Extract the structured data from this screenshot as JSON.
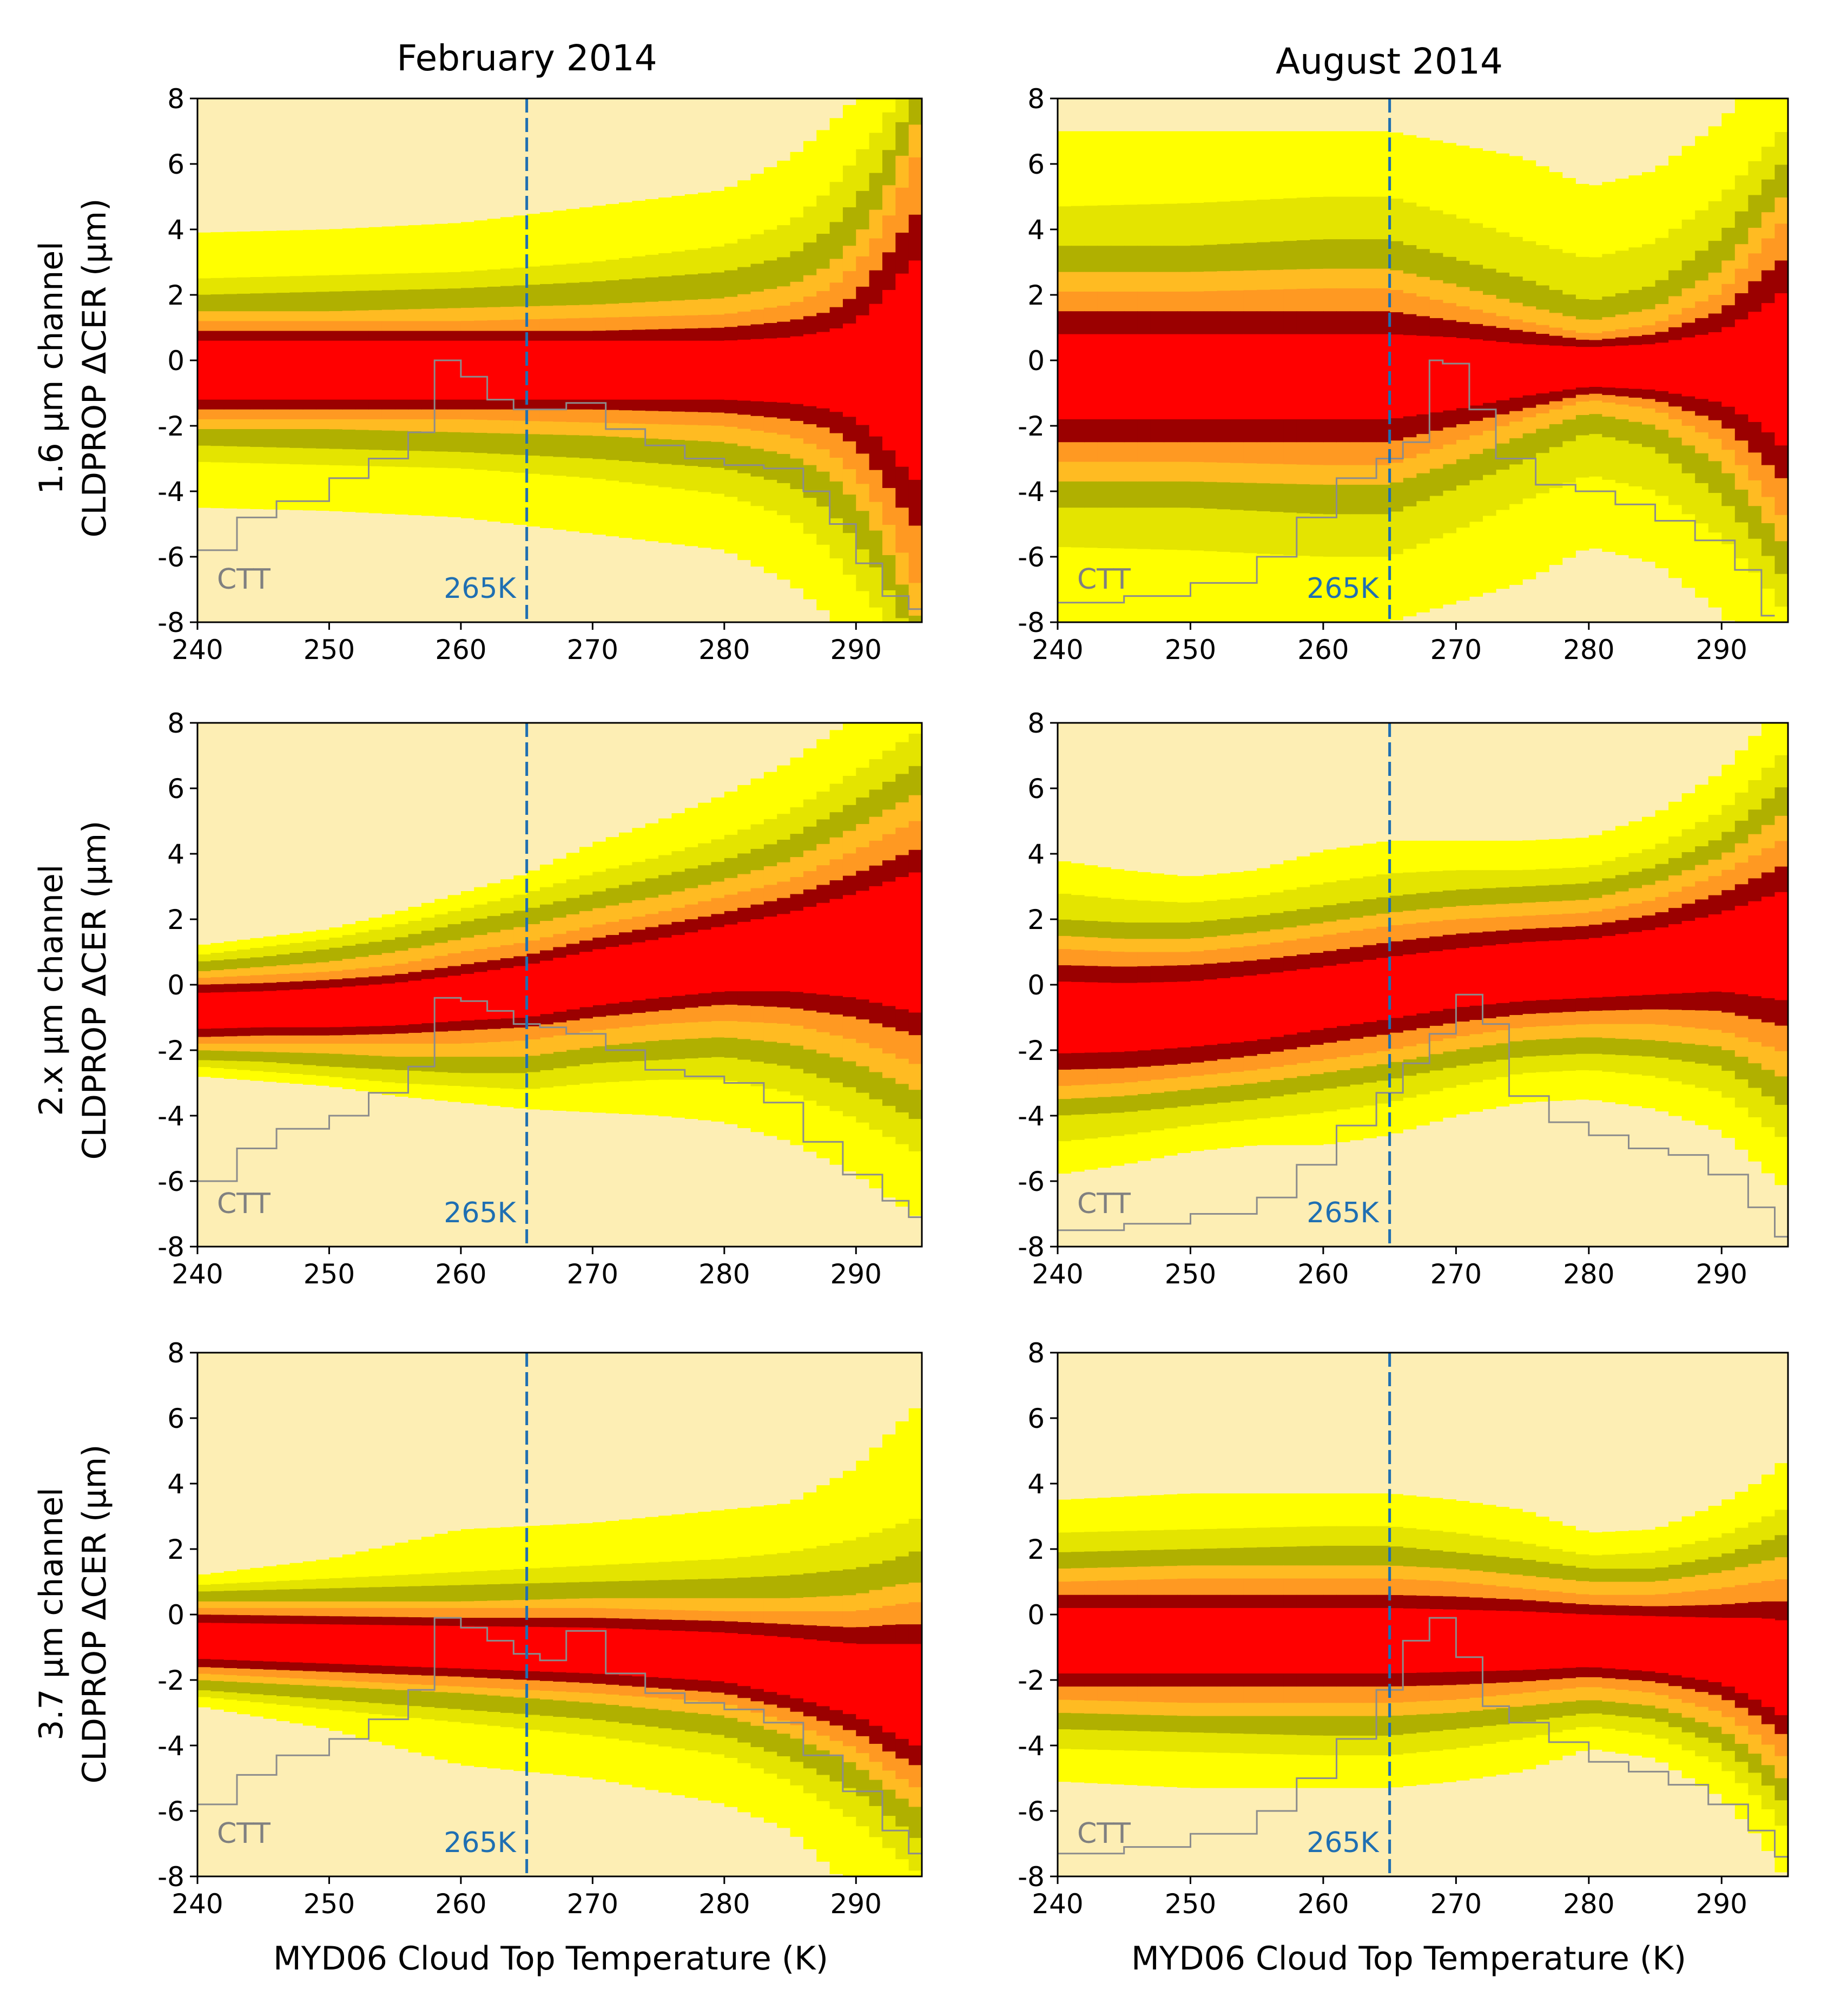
{
  "figure": {
    "col_titles": [
      "February 2014",
      "August 2014"
    ],
    "row_labels": [
      [
        "1.6 µm channel",
        "CLDPROP ΔCER (µm)"
      ],
      [
        "2.x µm channel",
        "CLDPROP ΔCER (µm)"
      ],
      [
        "3.7 µm channel",
        "CLDPROP ΔCER (µm)"
      ]
    ],
    "xlabel": "MYD06 Cloud Top Temperature (K)",
    "ctt_label": "CTT",
    "marker_label": "265K",
    "colors": {
      "band_levels": [
        "#fdeeb4",
        "#ffff00",
        "#e4e400",
        "#b0b000",
        "#ffbb22",
        "#ff9922",
        "#9b0000",
        "#ff0000"
      ],
      "ctt_line": "#8c8c8c",
      "marker_line": "#1f6fb2"
    }
  },
  "chart_data": [
    {
      "type": "heatmap",
      "panel": "February 2014 / 1.6 µm",
      "month": "February 2014",
      "channel": "1.6 µm channel",
      "xlim": [
        240,
        295
      ],
      "ylim": [
        -8,
        8
      ],
      "xticks": [
        240,
        250,
        260,
        270,
        280,
        290
      ],
      "yticks": [
        8,
        6,
        4,
        2,
        0,
        -2,
        -4,
        -6,
        -8
      ],
      "ylabel": "CLDPROP ΔCER (µm)",
      "xlabel": "MYD06 Cloud Top Temperature (K)",
      "x": [
        240,
        250,
        260,
        270,
        280,
        285,
        288,
        290,
        292,
        294,
        295
      ],
      "center": [
        -0.3,
        -0.3,
        -0.3,
        -0.3,
        -0.3,
        -0.3,
        -0.3,
        -0.3,
        -0.3,
        -0.3,
        -0.3
      ],
      "band_half_widths": [
        [
          4.2,
          4.3,
          4.5,
          5.0,
          5.5,
          6.5,
          7.5,
          8.3,
          9,
          9,
          9
        ],
        [
          2.8,
          2.9,
          3.0,
          3.3,
          3.8,
          4.5,
          5.5,
          6.5,
          7.5,
          9,
          9
        ],
        [
          2.3,
          2.4,
          2.5,
          2.7,
          3.0,
          3.5,
          4.3,
          5.2,
          6.3,
          8,
          9
        ],
        [
          1.8,
          1.8,
          1.9,
          2.0,
          2.2,
          2.6,
          3.2,
          4.0,
          5.2,
          7,
          8
        ],
        [
          1.5,
          1.5,
          1.5,
          1.6,
          1.7,
          2.0,
          2.5,
          3.2,
          4.3,
          6,
          7
        ],
        [
          1.2,
          1.2,
          1.2,
          1.2,
          1.3,
          1.5,
          1.8,
          2.3,
          3.3,
          4.5,
          5
        ],
        [
          0.9,
          0.9,
          0.9,
          0.9,
          0.9,
          1.0,
          1.2,
          1.5,
          2.2,
          3.2,
          3.5
        ]
      ],
      "ctt_histogram_x": [
        240,
        243,
        246,
        250,
        253,
        256,
        258,
        260,
        262,
        264,
        266,
        268,
        271,
        274,
        277,
        280,
        283,
        286,
        288,
        290,
        292,
        294
      ],
      "ctt_histogram_y": [
        -5.8,
        -4.8,
        -4.3,
        -3.6,
        -3.0,
        -2.2,
        0.0,
        -0.5,
        -1.2,
        -1.5,
        -1.5,
        -1.3,
        -2.1,
        -2.6,
        -3.0,
        -3.2,
        -3.3,
        -4.0,
        -5.0,
        -6.2,
        -7.2,
        -7.6
      ],
      "marker_x": 265
    },
    {
      "type": "heatmap",
      "panel": "August 2014 / 1.6 µm",
      "month": "August 2014",
      "channel": "1.6 µm channel",
      "xlim": [
        240,
        295
      ],
      "ylim": [
        -8,
        8
      ],
      "xticks": [
        240,
        250,
        260,
        270,
        280,
        290
      ],
      "yticks": [
        8,
        6,
        4,
        2,
        0,
        -2,
        -4,
        -6,
        -8
      ],
      "ylabel": "CLDPROP ΔCER (µm)",
      "xlabel": "MYD06 Cloud Top Temperature (K)",
      "x": [
        240,
        250,
        260,
        265,
        270,
        275,
        280,
        285,
        290,
        293,
        295
      ],
      "center": [
        -0.5,
        -0.5,
        -0.5,
        -0.5,
        -0.4,
        -0.3,
        -0.2,
        -0.2,
        -0.2,
        -0.2,
        -0.3
      ],
      "band_half_widths": [
        [
          7.5,
          7.5,
          7.5,
          7.5,
          7.0,
          6.5,
          5.5,
          6.0,
          7.5,
          9,
          9
        ],
        [
          5.2,
          5.3,
          5.5,
          5.5,
          4.8,
          4.0,
          3.3,
          3.8,
          5.2,
          6.5,
          7.5
        ],
        [
          4.0,
          4.0,
          4.2,
          4.2,
          3.5,
          2.8,
          2.0,
          2.5,
          4.0,
          5.5,
          6.5
        ],
        [
          3.2,
          3.2,
          3.3,
          3.3,
          2.7,
          2.0,
          1.4,
          1.8,
          3.0,
          4.5,
          5.5
        ],
        [
          2.6,
          2.6,
          2.7,
          2.7,
          2.1,
          1.5,
          1.0,
          1.3,
          2.3,
          3.7,
          4.7
        ],
        [
          2.0,
          2.0,
          2.0,
          2.0,
          1.6,
          1.2,
          0.8,
          1.0,
          1.7,
          2.8,
          3.5
        ],
        [
          1.3,
          1.3,
          1.3,
          1.3,
          1.1,
          0.8,
          0.6,
          0.7,
          1.1,
          1.8,
          2.5
        ]
      ],
      "ctt_histogram_x": [
        240,
        245,
        250,
        255,
        258,
        261,
        264,
        266,
        268,
        269,
        271,
        273,
        276,
        279,
        282,
        285,
        288,
        291,
        293
      ],
      "ctt_histogram_y": [
        -7.4,
        -7.2,
        -6.8,
        -6.0,
        -4.8,
        -3.6,
        -3.0,
        -2.5,
        0.0,
        -0.1,
        -1.5,
        -3.0,
        -3.8,
        -4.0,
        -4.4,
        -4.9,
        -5.5,
        -6.4,
        -7.8
      ],
      "marker_x": 265
    },
    {
      "type": "heatmap",
      "panel": "February 2014 / 2.x µm",
      "month": "February 2014",
      "channel": "2.x µm channel",
      "xlim": [
        240,
        295
      ],
      "ylim": [
        -8,
        8
      ],
      "xticks": [
        240,
        250,
        260,
        270,
        280,
        290
      ],
      "yticks": [
        8,
        6,
        4,
        2,
        0,
        -2,
        -4,
        -6,
        -8
      ],
      "ylabel": "CLDPROP ΔCER (µm)",
      "xlabel": "MYD06 Cloud Top Temperature (K)",
      "x": [
        240,
        245,
        250,
        255,
        260,
        265,
        270,
        275,
        280,
        285,
        290,
        295
      ],
      "center": [
        -0.8,
        -0.75,
        -0.7,
        -0.6,
        -0.4,
        -0.2,
        0.2,
        0.5,
        0.8,
        1.0,
        1.2,
        1.3
      ],
      "band_half_widths": [
        [
          2.0,
          2.2,
          2.4,
          2.8,
          3.2,
          3.6,
          4.1,
          4.5,
          5.0,
          5.8,
          7.0,
          8.5
        ],
        [
          1.7,
          1.9,
          2.1,
          2.4,
          2.7,
          3.0,
          3.2,
          3.4,
          3.7,
          4.3,
          5.3,
          6.5
        ],
        [
          1.5,
          1.6,
          1.8,
          2.0,
          2.3,
          2.5,
          2.6,
          2.8,
          3.0,
          3.5,
          4.4,
          5.5
        ],
        [
          1.2,
          1.3,
          1.4,
          1.6,
          1.8,
          2.0,
          2.1,
          2.2,
          2.4,
          2.8,
          3.6,
          4.6
        ],
        [
          1.0,
          1.05,
          1.1,
          1.2,
          1.4,
          1.5,
          1.6,
          1.7,
          1.9,
          2.2,
          2.9,
          3.8
        ],
        [
          0.8,
          0.8,
          0.85,
          0.9,
          1.0,
          1.1,
          1.2,
          1.3,
          1.4,
          1.7,
          2.2,
          2.9
        ],
        [
          0.55,
          0.55,
          0.6,
          0.65,
          0.7,
          0.8,
          0.85,
          0.9,
          1.0,
          1.2,
          1.6,
          2.2
        ]
      ],
      "ctt_histogram_x": [
        240,
        243,
        246,
        250,
        253,
        256,
        258,
        260,
        262,
        264,
        266,
        268,
        271,
        274,
        277,
        280,
        283,
        286,
        289,
        292,
        294
      ],
      "ctt_histogram_y": [
        -6.0,
        -5.0,
        -4.4,
        -4.0,
        -3.3,
        -2.5,
        -0.4,
        -0.5,
        -0.8,
        -1.2,
        -1.3,
        -1.5,
        -2.0,
        -2.6,
        -2.8,
        -3.0,
        -3.6,
        -4.8,
        -5.8,
        -6.6,
        -7.1
      ],
      "marker_x": 265
    },
    {
      "type": "heatmap",
      "panel": "August 2014 / 2.x µm",
      "month": "August 2014",
      "channel": "2.x µm channel",
      "xlim": [
        240,
        295
      ],
      "ylim": [
        -8,
        8
      ],
      "xticks": [
        240,
        250,
        260,
        270,
        280,
        290
      ],
      "yticks": [
        8,
        6,
        4,
        2,
        0,
        -2,
        -4,
        -6,
        -8
      ],
      "ylabel": "CLDPROP ΔCER (µm)",
      "xlabel": "MYD06 Cloud Top Temperature (K)",
      "x": [
        240,
        245,
        250,
        255,
        260,
        265,
        270,
        275,
        280,
        285,
        290,
        295
      ],
      "center": [
        -1.0,
        -1.0,
        -0.9,
        -0.7,
        -0.4,
        -0.1,
        0.2,
        0.4,
        0.5,
        0.7,
        1.0,
        1.2
      ],
      "band_half_widths": [
        [
          4.8,
          4.5,
          4.2,
          4.2,
          4.5,
          4.5,
          4.2,
          4.0,
          4.0,
          4.5,
          5.5,
          7.5
        ],
        [
          3.8,
          3.6,
          3.4,
          3.4,
          3.5,
          3.5,
          3.3,
          3.1,
          3.1,
          3.5,
          4.3,
          6.0
        ],
        [
          3.0,
          2.9,
          2.8,
          2.8,
          2.8,
          2.8,
          2.7,
          2.6,
          2.6,
          2.9,
          3.5,
          5.0
        ],
        [
          2.5,
          2.4,
          2.3,
          2.3,
          2.3,
          2.3,
          2.2,
          2.1,
          2.1,
          2.4,
          2.9,
          4.1
        ],
        [
          2.1,
          2.0,
          1.9,
          1.9,
          1.9,
          1.9,
          1.8,
          1.7,
          1.7,
          1.9,
          2.4,
          3.3
        ],
        [
          1.6,
          1.55,
          1.5,
          1.45,
          1.4,
          1.4,
          1.35,
          1.3,
          1.3,
          1.45,
          1.8,
          2.5
        ],
        [
          1.1,
          1.05,
          1.0,
          1.0,
          0.95,
          0.95,
          0.9,
          0.9,
          0.9,
          1.0,
          1.2,
          1.7
        ]
      ],
      "ctt_histogram_x": [
        240,
        245,
        250,
        255,
        258,
        261,
        264,
        266,
        268,
        270,
        272,
        274,
        277,
        280,
        283,
        286,
        289,
        292,
        294
      ],
      "ctt_histogram_y": [
        -7.5,
        -7.3,
        -7.0,
        -6.5,
        -5.5,
        -4.3,
        -3.3,
        -2.4,
        -1.5,
        -0.3,
        -1.2,
        -3.4,
        -4.2,
        -4.6,
        -5.0,
        -5.2,
        -5.8,
        -6.8,
        -7.7
      ],
      "marker_x": 265
    },
    {
      "type": "heatmap",
      "panel": "February 2014 / 3.7 µm",
      "month": "February 2014",
      "channel": "3.7 µm channel",
      "xlim": [
        240,
        295
      ],
      "ylim": [
        -8,
        8
      ],
      "xticks": [
        240,
        250,
        260,
        270,
        280,
        290
      ],
      "yticks": [
        8,
        6,
        4,
        2,
        0,
        -2,
        -4,
        -6,
        -8
      ],
      "ylabel": "CLDPROP ΔCER (µm)",
      "xlabel": "MYD06 Cloud Top Temperature (K)",
      "x": [
        240,
        250,
        260,
        270,
        280,
        285,
        290,
        293,
        295
      ],
      "center": [
        -0.8,
        -0.9,
        -1.0,
        -1.1,
        -1.3,
        -1.6,
        -2.0,
        -2.3,
        -2.5
      ],
      "band_half_widths": [
        [
          2.0,
          2.6,
          3.6,
          3.9,
          4.5,
          5.0,
          6.5,
          8.0,
          9.0
        ],
        [
          1.7,
          2.0,
          2.3,
          2.6,
          3.0,
          3.5,
          4.3,
          5.0,
          5.5
        ],
        [
          1.5,
          1.7,
          1.9,
          2.1,
          2.4,
          2.8,
          3.4,
          4.0,
          4.5
        ],
        [
          1.2,
          1.3,
          1.4,
          1.6,
          1.8,
          2.1,
          2.6,
          3.2,
          3.5
        ],
        [
          1.0,
          1.1,
          1.2,
          1.3,
          1.4,
          1.7,
          2.1,
          2.6,
          2.9
        ],
        [
          0.8,
          0.85,
          0.9,
          1.0,
          1.1,
          1.3,
          1.6,
          2.0,
          2.2
        ],
        [
          0.55,
          0.6,
          0.65,
          0.7,
          0.75,
          0.9,
          1.1,
          1.4,
          1.6
        ]
      ],
      "ctt_histogram_x": [
        240,
        243,
        246,
        250,
        253,
        256,
        258,
        260,
        262,
        264,
        266,
        268,
        271,
        274,
        277,
        280,
        283,
        286,
        289,
        292,
        294
      ],
      "ctt_histogram_y": [
        -5.8,
        -4.9,
        -4.3,
        -3.8,
        -3.2,
        -2.3,
        -0.1,
        -0.4,
        -0.8,
        -1.2,
        -1.4,
        -0.5,
        -1.8,
        -2.4,
        -2.7,
        -2.9,
        -3.3,
        -4.3,
        -5.4,
        -6.6,
        -7.3
      ],
      "marker_x": 265
    },
    {
      "type": "heatmap",
      "panel": "August 2014 / 3.7 µm",
      "month": "August 2014",
      "channel": "3.7 µm channel",
      "xlim": [
        240,
        295
      ],
      "ylim": [
        -8,
        8
      ],
      "xticks": [
        240,
        250,
        260,
        270,
        280,
        290
      ],
      "yticks": [
        8,
        6,
        4,
        2,
        0,
        -2,
        -4,
        -6,
        -8
      ],
      "ylabel": "CLDPROP ΔCER (µm)",
      "xlabel": "MYD06 Cloud Top Temperature (K)",
      "x": [
        240,
        250,
        260,
        265,
        270,
        275,
        280,
        285,
        290,
        293,
        295
      ],
      "center": [
        -0.8,
        -0.8,
        -0.8,
        -0.8,
        -0.8,
        -0.8,
        -0.8,
        -0.9,
        -1.1,
        -1.4,
        -1.7
      ],
      "band_half_widths": [
        [
          4.3,
          4.5,
          4.5,
          4.5,
          4.3,
          4.0,
          3.3,
          3.5,
          4.5,
          5.5,
          6.5
        ],
        [
          3.3,
          3.4,
          3.5,
          3.5,
          3.3,
          3.0,
          2.6,
          2.8,
          3.5,
          4.3,
          5.0
        ],
        [
          2.7,
          2.8,
          2.9,
          2.9,
          2.7,
          2.5,
          2.2,
          2.3,
          2.9,
          3.6,
          4.2
        ],
        [
          2.2,
          2.3,
          2.3,
          2.3,
          2.2,
          2.0,
          1.8,
          1.9,
          2.4,
          3.0,
          3.5
        ],
        [
          1.8,
          1.9,
          1.9,
          1.9,
          1.8,
          1.6,
          1.4,
          1.5,
          1.9,
          2.4,
          2.8
        ],
        [
          1.4,
          1.4,
          1.4,
          1.4,
          1.35,
          1.25,
          1.1,
          1.15,
          1.4,
          1.8,
          2.1
        ],
        [
          1.0,
          1.0,
          1.0,
          1.0,
          0.95,
          0.9,
          0.8,
          0.85,
          1.0,
          1.3,
          1.5
        ]
      ],
      "ctt_histogram_x": [
        240,
        245,
        250,
        255,
        258,
        261,
        264,
        266,
        268,
        270,
        272,
        274,
        277,
        280,
        283,
        286,
        289,
        292,
        294
      ],
      "ctt_histogram_y": [
        -7.3,
        -7.1,
        -6.7,
        -6.0,
        -5.0,
        -3.8,
        -2.3,
        -0.8,
        -0.1,
        -1.3,
        -2.8,
        -3.3,
        -3.9,
        -4.5,
        -4.8,
        -5.2,
        -5.8,
        -6.6,
        -7.4
      ],
      "marker_x": 265
    }
  ]
}
